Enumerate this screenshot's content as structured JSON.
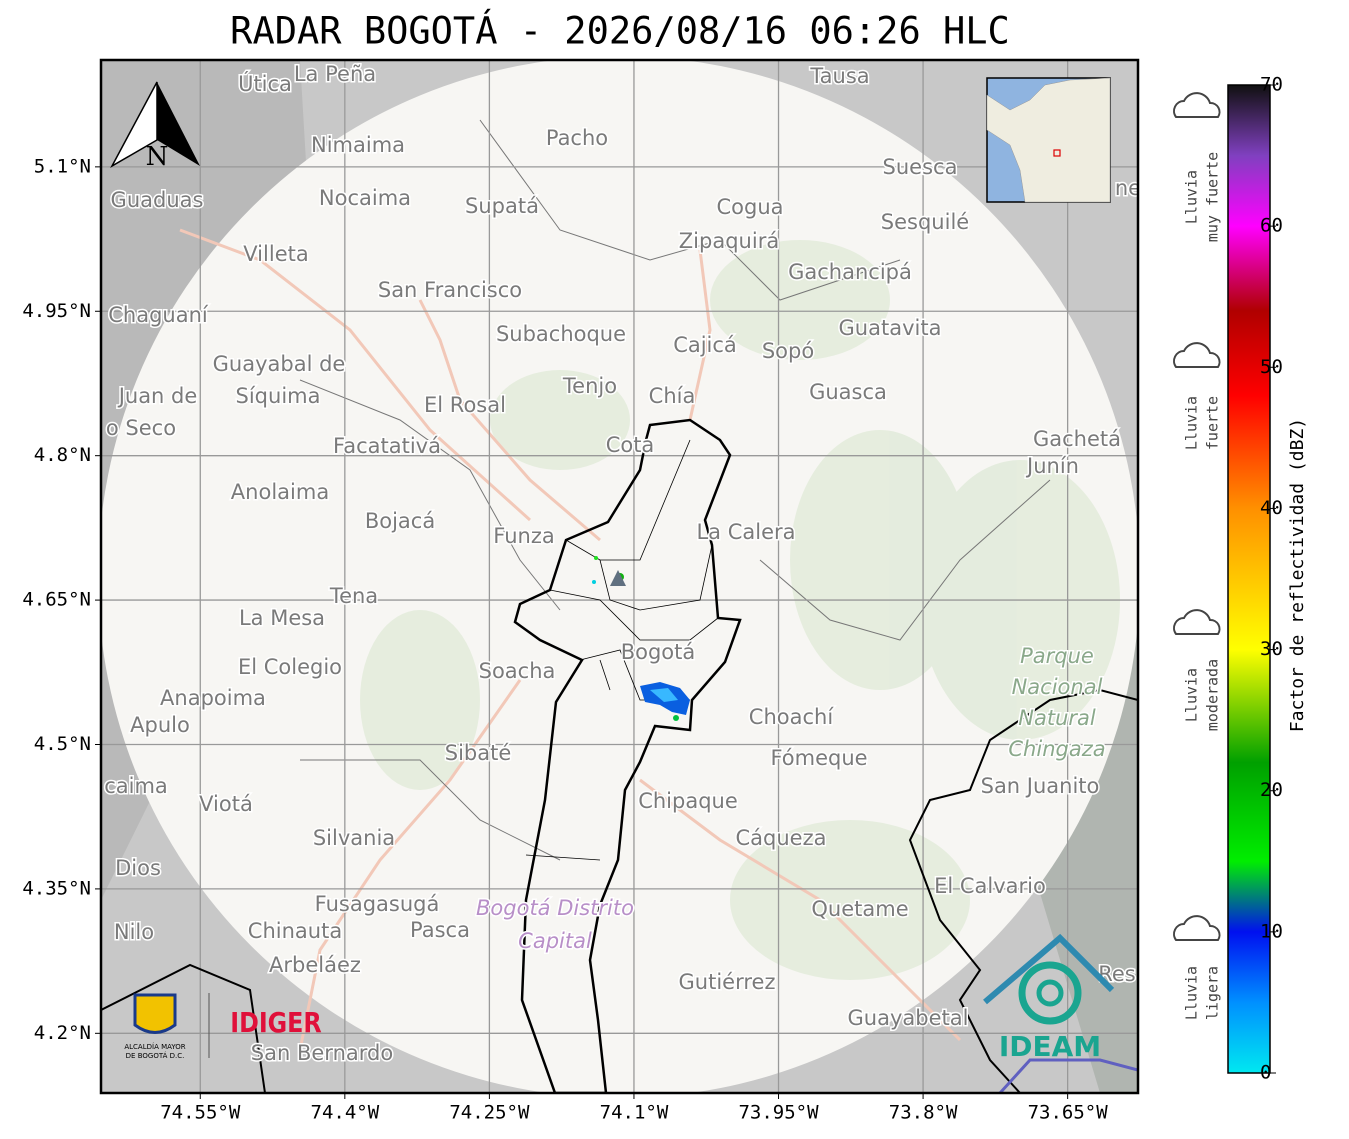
{
  "title": "RADAR BOGOTÁ - 2026/08/16 06:26 HLC",
  "map": {
    "xlim": [
      -74.653,
      -73.577
    ],
    "ylim": [
      4.138,
      5.211
    ],
    "xticks": [
      {
        "value": -74.55,
        "label": "74.55°W"
      },
      {
        "value": -74.4,
        "label": "74.4°W"
      },
      {
        "value": -74.25,
        "label": "74.25°W"
      },
      {
        "value": -74.1,
        "label": "74.1°W"
      },
      {
        "value": -73.95,
        "label": "73.95°W"
      },
      {
        "value": -73.8,
        "label": "73.8°W"
      },
      {
        "value": -73.65,
        "label": "73.65°W"
      }
    ],
    "yticks": [
      {
        "value": 5.1,
        "label": "5.1°N"
      },
      {
        "value": 4.95,
        "label": "4.95°N"
      },
      {
        "value": 4.8,
        "label": "4.8°N"
      },
      {
        "value": 4.65,
        "label": "4.65°N"
      },
      {
        "value": 4.5,
        "label": "4.5°N"
      },
      {
        "value": 4.35,
        "label": "4.35°N"
      },
      {
        "value": 4.2,
        "label": "4.2°N"
      }
    ],
    "grid": true,
    "north": "N",
    "places": [
      "Útica",
      "La Peña",
      "Tausa",
      "Pacho",
      "Nimaima",
      "Guaduas",
      "Nocaima",
      "Supatá",
      "Cogua",
      "Suesca",
      "Sesquilé",
      "Zipaquirá",
      "Villeta",
      "Gachancipá",
      "San Francisco",
      "Chaguaní",
      "Guatavita",
      "Subachoque",
      "Cajicá",
      "Sopó",
      "Guayabal de",
      "Síquima",
      "Juan de",
      "Tenjo",
      "Chía",
      "Guasca",
      "El Rosal",
      "o Seco",
      "Facatativá",
      "Cota",
      "Gachetá",
      "Junín",
      "Anolaima",
      "Bojacá",
      "Funza",
      "La Calera",
      "Tena",
      "La Mesa",
      "Bogotá",
      "Soacha",
      "El Colegio",
      "Anapoima",
      "Apulo",
      "Choachí",
      "Sibaté",
      "Fómeque",
      "San Juanito",
      "caima",
      "Viotá",
      "Chipaque",
      "Silvania",
      "Cáqueza",
      "Dios",
      "El Calvario",
      "Fusagasugá",
      "Quetame",
      "Nilo",
      "Chinauta",
      "Pasca",
      "Arbeláez",
      "Gutiérrez",
      "Guayabetal",
      "San Bernardo",
      "Res",
      "ne"
    ],
    "park": [
      "Parque",
      "Nacional",
      "Natural",
      "Chingaza"
    ],
    "district": [
      "Bogotá Distrito",
      "Capital"
    ]
  },
  "logos": {
    "alcaldia": [
      "ALCALDÍA MAYOR",
      "DE BOGOTÁ D.C."
    ],
    "idiger": "IDIGER",
    "ideam": "IDEAM"
  },
  "colorbar": {
    "label": "Factor de reflectividad (dBZ)",
    "lim": [
      0,
      70
    ],
    "ticks": [
      0,
      10,
      20,
      30,
      40,
      50,
      60,
      70
    ],
    "colorscale": [
      {
        "value": 0,
        "color": "#00e8f0"
      },
      {
        "value": 5,
        "color": "#0090ff"
      },
      {
        "value": 10,
        "color": "#0010f0"
      },
      {
        "value": 15,
        "color": "#00ee00"
      },
      {
        "value": 22,
        "color": "#00a000"
      },
      {
        "value": 30,
        "color": "#ffff00"
      },
      {
        "value": 40,
        "color": "#ff9000"
      },
      {
        "value": 48,
        "color": "#ff0000"
      },
      {
        "value": 54,
        "color": "#b00000"
      },
      {
        "value": 60,
        "color": "#ff00ff"
      },
      {
        "value": 65,
        "color": "#8040c0"
      },
      {
        "value": 70,
        "color": "#101010"
      }
    ],
    "categories": [
      [
        "Lluvia",
        "muy fuerte"
      ],
      [
        "Lluvia",
        "fuerte"
      ],
      [
        "Lluvia",
        "moderada"
      ],
      [
        "Lluvia",
        "ligera"
      ]
    ]
  }
}
